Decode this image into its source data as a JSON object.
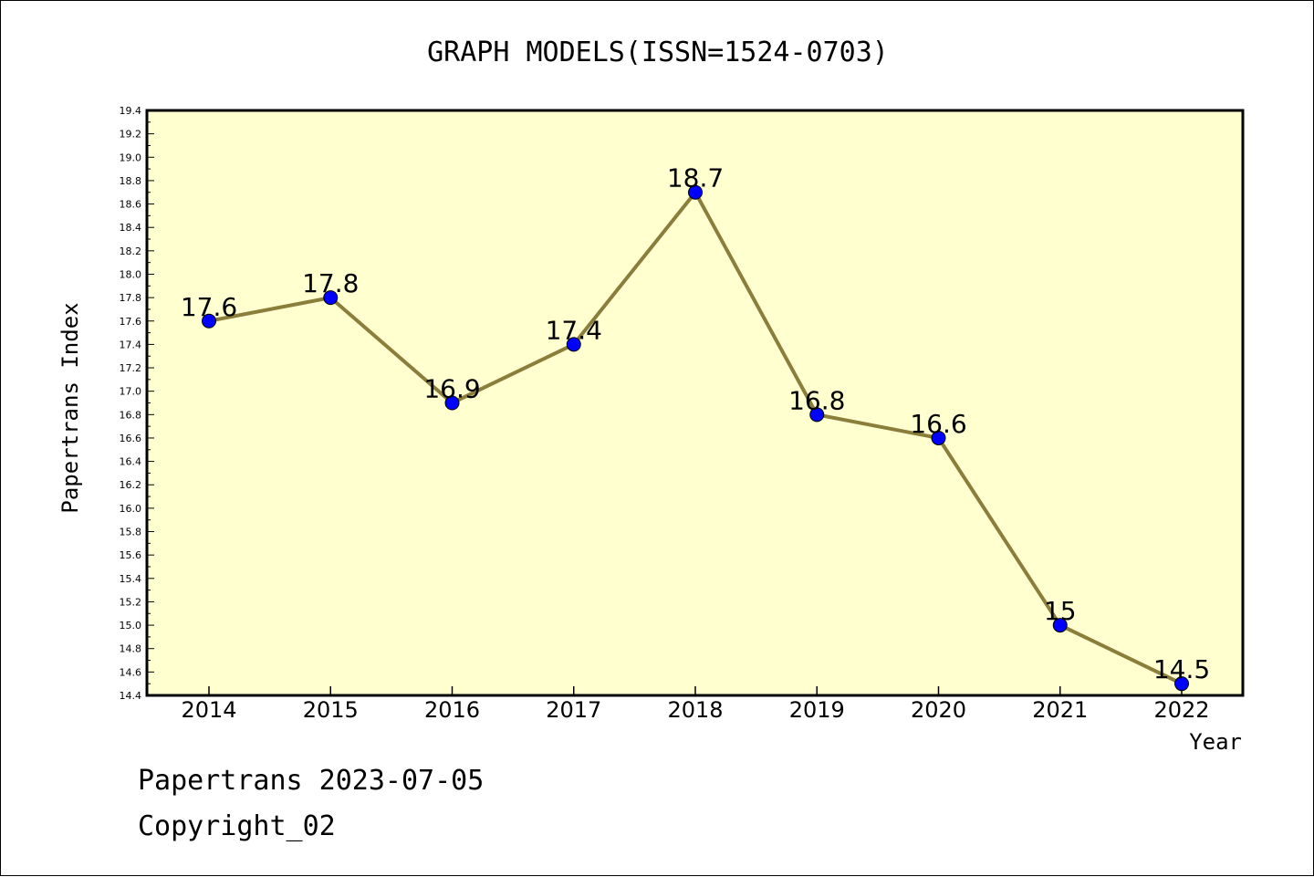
{
  "chart_data": {
    "type": "line",
    "title": "GRAPH MODELS(ISSN=1524-0703)",
    "xlabel": "Year",
    "ylabel": "Papertrans Index",
    "categories": [
      "2014",
      "2015",
      "2016",
      "2017",
      "2018",
      "2019",
      "2020",
      "2021",
      "2022"
    ],
    "series": [
      {
        "values": [
          17.6,
          17.8,
          16.9,
          17.4,
          18.7,
          16.8,
          16.6,
          15.0,
          14.5
        ],
        "labels": [
          "17.6",
          "17.8",
          "16.9",
          "17.4",
          "18.7",
          "16.8",
          "16.6",
          "15",
          "14.5"
        ]
      }
    ],
    "ylim": [
      14.4,
      19.4
    ],
    "yticks": [
      "14.4",
      "14.6",
      "14.8",
      "15.0",
      "15.2",
      "15.4",
      "15.6",
      "15.8",
      "16.0",
      "16.2",
      "16.4",
      "16.6",
      "16.8",
      "17.0",
      "17.2",
      "17.4",
      "17.6",
      "17.8",
      "18.0",
      "18.2",
      "18.4",
      "18.6",
      "18.8",
      "19.0",
      "19.2",
      "19.4"
    ],
    "grid": false,
    "colors": {
      "plot_background": "#ffffd0",
      "line": "#8b7d3a",
      "marker": "#0000ff"
    }
  },
  "footer": {
    "line1": "Papertrans 2023-07-05",
    "line2": "Copyright_02"
  }
}
